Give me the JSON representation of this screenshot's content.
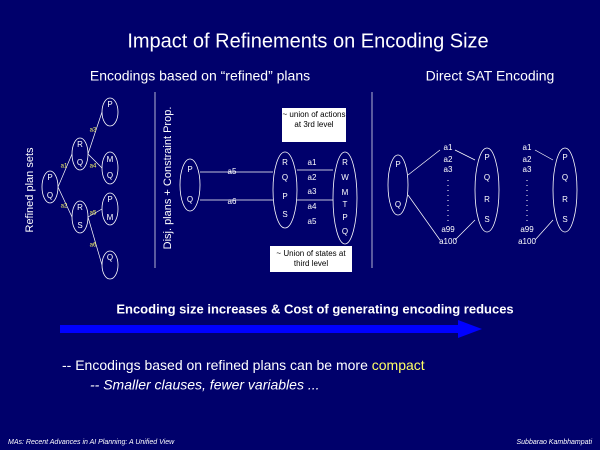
{
  "title": "Impact of Refinements on Encoding Size",
  "left_heading": "Encodings based on “refined” plans",
  "right_heading": "Direct SAT Encoding",
  "side_labels": [
    "Refined plan sets",
    "Disj. plans + Constraint Prop."
  ],
  "tree": {
    "nodes": [
      "P",
      "Q",
      "R",
      "Q",
      "R",
      "S",
      "P",
      "M",
      "Q",
      "P",
      "M",
      "Q"
    ],
    "edges": [
      "a1",
      "a2",
      "a3",
      "a4",
      "a5",
      "a6"
    ]
  },
  "disjunctive": {
    "states": [
      "P",
      "Q",
      "R",
      "Q",
      "P",
      "S",
      "R",
      "W",
      "M",
      "T",
      "P",
      "Q"
    ],
    "actions": [
      "a5",
      "a6",
      "a1",
      "a2",
      "a3",
      "a4",
      "a5"
    ]
  },
  "sat": {
    "states": [
      "P",
      "Q",
      "P",
      "Q",
      "R",
      "S",
      "P",
      "Q",
      "R",
      "S"
    ],
    "actions": [
      "a1",
      "a2",
      "a3",
      "a99",
      "a100",
      "a1",
      "a2",
      "a3",
      "a99",
      "a100"
    ]
  },
  "callouts": [
    "~ union of actions at 3rd level",
    "~ Union of states at third level"
  ],
  "arrow_text": "Encoding size increases & Cost of generating encoding reduces",
  "bullets": [
    [
      "-- Encodings based on refined plans can be more ",
      "compact"
    ],
    [
      "-- Smaller clauses, fewer variables ..."
    ]
  ],
  "footer": {
    "left": "MAs: Recent Advances in AI Planning: A Unified View",
    "right": "Subbarao Kambhampati"
  }
}
